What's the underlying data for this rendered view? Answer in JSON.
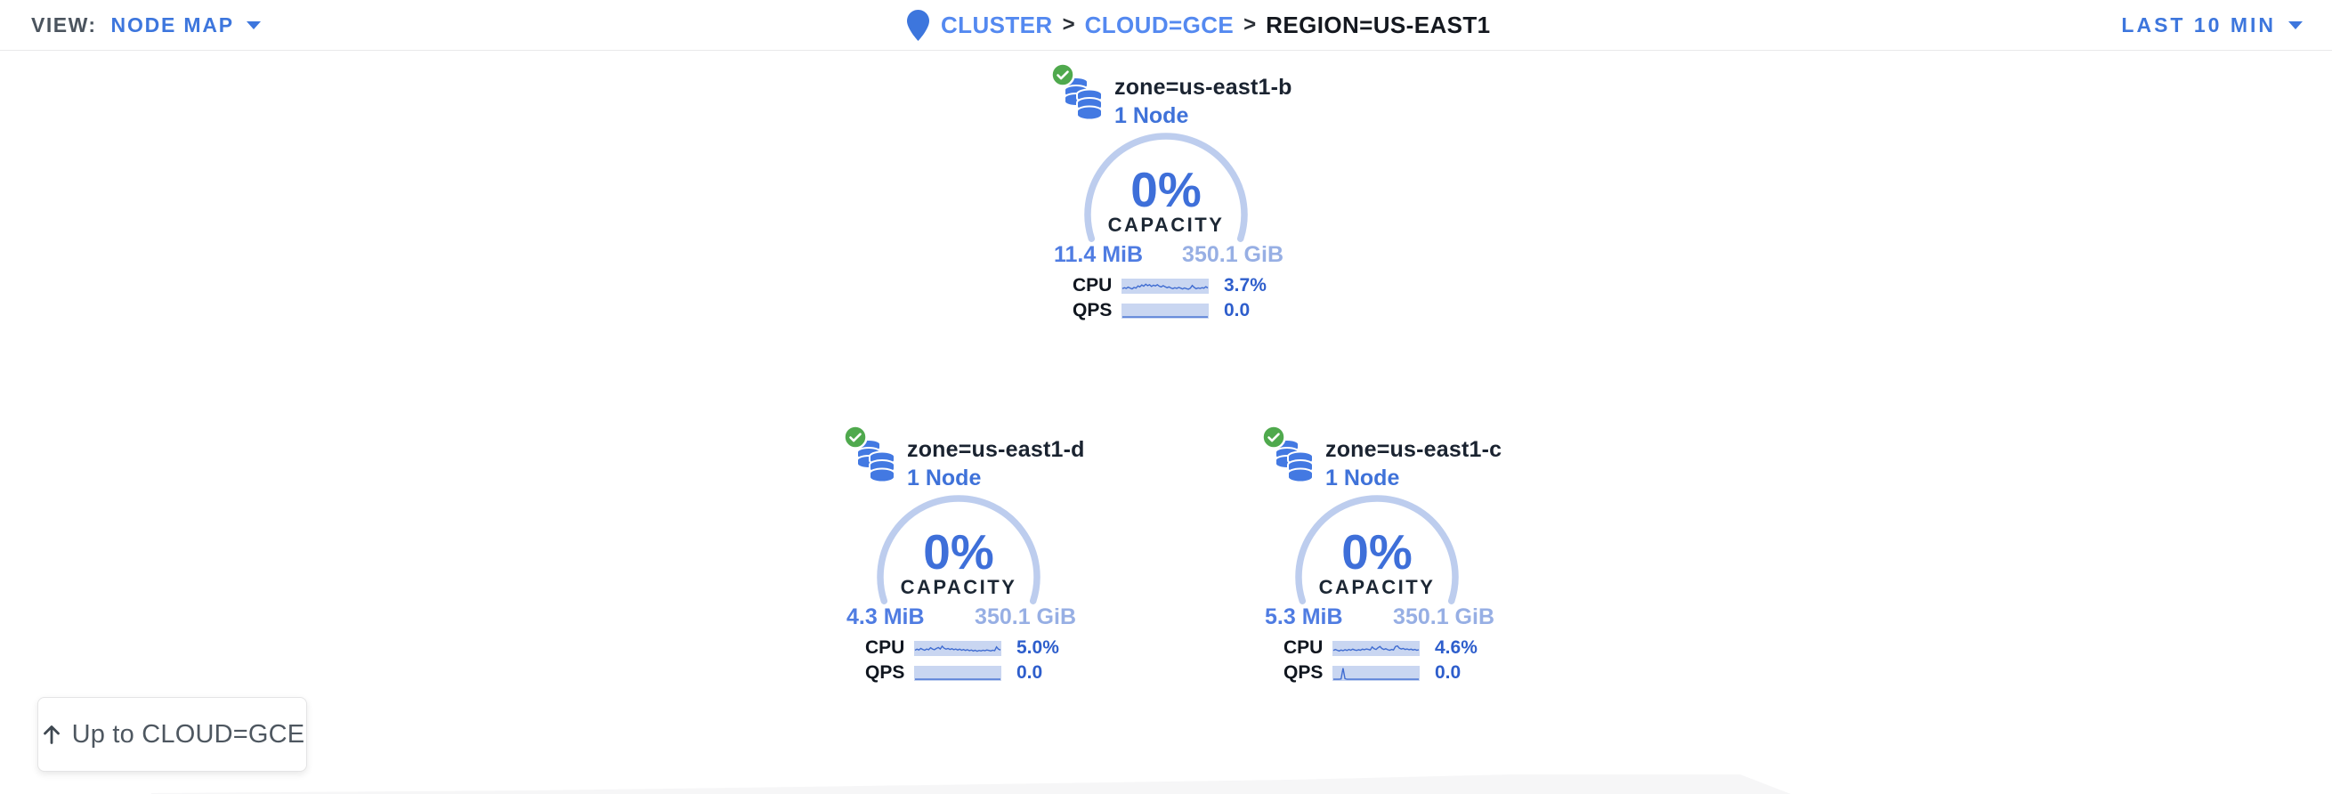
{
  "topbar": {
    "view_label": "VIEW:",
    "view_value": "NODE MAP",
    "breadcrumb": {
      "separator": ">",
      "items": [
        {
          "label": "CLUSTER"
        },
        {
          "label": "CLOUD=GCE"
        },
        {
          "label": "REGION=US-EAST1"
        }
      ]
    },
    "time_range": "LAST 10 MIN"
  },
  "zones": [
    {
      "name": "zone=us-east1-b",
      "nodes": "1 Node",
      "status": "healthy",
      "capacity_pct": "0%",
      "capacity_label": "CAPACITY",
      "used": "11.4 MiB",
      "total": "350.1 GiB",
      "cpu_label": "CPU",
      "cpu_value": "3.7%",
      "qps_label": "QPS",
      "qps_value": "0.0",
      "cpu_spark": [
        0.3,
        0.38,
        0.32,
        0.42,
        0.35,
        0.28,
        0.4,
        0.34,
        0.52,
        0.44,
        0.6,
        0.5,
        0.66,
        0.54,
        0.62,
        0.48,
        0.58,
        0.52,
        0.62,
        0.5,
        0.44,
        0.54,
        0.46,
        0.38,
        0.44,
        0.36,
        0.3,
        0.38,
        0.32,
        0.4,
        0.34,
        0.28,
        0.36,
        0.3,
        0.26,
        0.34,
        0.56,
        0.4,
        0.3,
        0.36,
        0.32,
        0.38,
        0.34,
        0.46,
        0.36
      ],
      "qps_spark": [
        0.03,
        0.03,
        0.03,
        0.03,
        0.03,
        0.03,
        0.03,
        0.03,
        0.03,
        0.03,
        0.03,
        0.03,
        0.03,
        0.03,
        0.03,
        0.03,
        0.03,
        0.03,
        0.03,
        0.03,
        0.03,
        0.03,
        0.03,
        0.03,
        0.03,
        0.03,
        0.03,
        0.03,
        0.03,
        0.03,
        0.03,
        0.03,
        0.03,
        0.03,
        0.03,
        0.03,
        0.03,
        0.03,
        0.03,
        0.03,
        0.03,
        0.03,
        0.03,
        0.03,
        0.03
      ]
    },
    {
      "name": "zone=us-east1-d",
      "nodes": "1 Node",
      "status": "healthy",
      "capacity_pct": "0%",
      "capacity_label": "CAPACITY",
      "used": "4.3 MiB",
      "total": "350.1 GiB",
      "cpu_label": "CPU",
      "cpu_value": "5.0%",
      "qps_label": "QPS",
      "qps_value": "0.0",
      "cpu_spark": [
        0.36,
        0.44,
        0.38,
        0.5,
        0.42,
        0.36,
        0.46,
        0.4,
        0.56,
        0.46,
        0.4,
        0.5,
        0.58,
        0.46,
        0.68,
        0.52,
        0.44,
        0.5,
        0.42,
        0.48,
        0.4,
        0.46,
        0.38,
        0.44,
        0.36,
        0.42,
        0.34,
        0.4,
        0.32,
        0.38,
        0.3,
        0.36,
        0.28,
        0.34,
        0.3,
        0.36,
        0.32,
        0.38,
        0.34,
        0.3,
        0.36,
        0.32,
        0.62,
        0.44,
        0.38
      ],
      "qps_spark": [
        0.03,
        0.03,
        0.03,
        0.03,
        0.03,
        0.03,
        0.03,
        0.03,
        0.03,
        0.03,
        0.03,
        0.03,
        0.03,
        0.03,
        0.03,
        0.03,
        0.03,
        0.03,
        0.03,
        0.03,
        0.03,
        0.03,
        0.03,
        0.03,
        0.03,
        0.03,
        0.03,
        0.03,
        0.03,
        0.03,
        0.03,
        0.03,
        0.03,
        0.03,
        0.03,
        0.03,
        0.03,
        0.03,
        0.03,
        0.03,
        0.03,
        0.03,
        0.03,
        0.03,
        0.03
      ]
    },
    {
      "name": "zone=us-east1-c",
      "nodes": "1 Node",
      "status": "healthy",
      "capacity_pct": "0%",
      "capacity_label": "CAPACITY",
      "used": "5.3 MiB",
      "total": "350.1 GiB",
      "cpu_label": "CPU",
      "cpu_value": "4.6%",
      "qps_label": "QPS",
      "qps_value": "0.0",
      "cpu_spark": [
        0.34,
        0.42,
        0.36,
        0.3,
        0.38,
        0.32,
        0.4,
        0.34,
        0.42,
        0.36,
        0.44,
        0.38,
        0.34,
        0.4,
        0.36,
        0.44,
        0.4,
        0.46,
        0.42,
        0.38,
        0.62,
        0.48,
        0.42,
        0.56,
        0.66,
        0.5,
        0.42,
        0.48,
        0.4,
        0.36,
        0.42,
        0.38,
        0.66,
        0.7,
        0.52,
        0.46,
        0.5,
        0.42,
        0.46,
        0.4,
        0.44,
        0.38,
        0.42,
        0.36,
        0.4
      ],
      "qps_spark": [
        0.03,
        0.03,
        0.03,
        0.03,
        0.05,
        0.92,
        0.07,
        0.03,
        0.03,
        0.03,
        0.03,
        0.03,
        0.03,
        0.03,
        0.03,
        0.03,
        0.03,
        0.03,
        0.03,
        0.03,
        0.03,
        0.03,
        0.03,
        0.03,
        0.03,
        0.03,
        0.03,
        0.03,
        0.03,
        0.03,
        0.03,
        0.03,
        0.03,
        0.03,
        0.03,
        0.03,
        0.03,
        0.03,
        0.03,
        0.03,
        0.03,
        0.03,
        0.03,
        0.03,
        0.03
      ]
    }
  ],
  "back_button": {
    "label": "Up to CLOUD=GCE"
  },
  "colors": {
    "accent_blue": "#3d76dd",
    "link_blue": "#5489f0",
    "gauge_arc": "#bdcdee",
    "percent_blue": "#3e6fd9",
    "spark_bg": "#c9d6f1",
    "spark_line": "#3f6cd1",
    "healthy_green": "#4fa94d",
    "icon_blue": "#4379e2",
    "used_blue": "#4f7ce2",
    "total_blue": "#97afe4"
  }
}
